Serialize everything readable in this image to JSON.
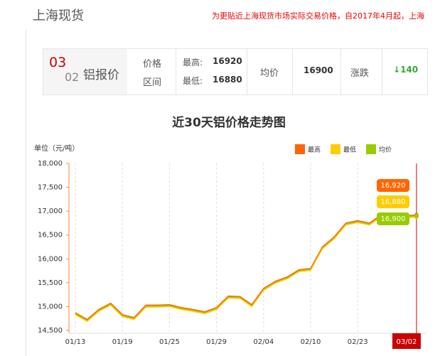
{
  "header": {
    "title": "上海现货",
    "notice": "为更贴近上海现货市场实际交易价格，自2017年4月起，上海"
  },
  "price_box": {
    "month": "03",
    "day": "02",
    "name": "铝报价",
    "range_label_1": "价格",
    "range_label_2": "区间",
    "high_label": "最高:",
    "high": "16920",
    "low_label": "最低:",
    "low": "16880",
    "avg_label": "均价",
    "avg": "16900",
    "change_label": "涨跌",
    "change": "140"
  },
  "chart_data": {
    "type": "line",
    "title": "近30天铝价格走势图",
    "y_label": "单位（元/吨）",
    "categories": [
      "01/13",
      null,
      null,
      null,
      "01/19",
      null,
      null,
      null,
      "01/25",
      null,
      null,
      null,
      "01/29",
      null,
      null,
      null,
      "02/04",
      null,
      null,
      null,
      "02/10",
      null,
      null,
      null,
      "02/23",
      null,
      null,
      null,
      null,
      "03/02"
    ],
    "series": [
      {
        "name": "最高",
        "color": "#ff6600",
        "values": [
          14870,
          14730,
          14940,
          15070,
          14830,
          14770,
          15030,
          15030,
          15040,
          14980,
          14940,
          14890,
          14980,
          15220,
          15210,
          15040,
          15380,
          15530,
          15620,
          15770,
          15800,
          16250,
          16460,
          16750,
          16800,
          16750,
          16920,
          16910,
          16900,
          16920
        ],
        "value_labels": [
          null,
          null,
          null,
          null,
          null,
          null,
          null,
          null,
          null,
          null,
          null,
          null,
          null,
          null,
          null,
          null,
          null,
          null,
          null,
          null,
          null,
          null,
          null,
          null,
          null,
          null,
          null,
          null,
          null,
          "16,920"
        ]
      },
      {
        "name": "最低",
        "color": "#ffcc00",
        "values": [
          14830,
          14690,
          14900,
          15030,
          14790,
          14730,
          14990,
          14990,
          15000,
          14940,
          14900,
          14850,
          14940,
          15180,
          15170,
          15000,
          15340,
          15490,
          15580,
          15730,
          15760,
          16210,
          16420,
          16710,
          16760,
          16710,
          16880,
          16870,
          16860,
          16880
        ],
        "value_labels": [
          null,
          null,
          null,
          null,
          null,
          null,
          null,
          null,
          null,
          null,
          null,
          null,
          null,
          null,
          null,
          null,
          null,
          null,
          null,
          null,
          null,
          null,
          null,
          null,
          null,
          null,
          null,
          null,
          null,
          "16,880"
        ]
      },
      {
        "name": "均价",
        "color": "#99cc00",
        "values": [
          14850,
          14710,
          14920,
          15050,
          14810,
          14750,
          15010,
          15010,
          15020,
          14960,
          14920,
          14870,
          14960,
          15200,
          15190,
          15020,
          15360,
          15510,
          15600,
          15750,
          15780,
          16230,
          16440,
          16730,
          16780,
          16730,
          16900,
          16890,
          16880,
          16900
        ],
        "value_labels": [
          null,
          null,
          null,
          null,
          null,
          null,
          null,
          null,
          null,
          null,
          null,
          null,
          null,
          null,
          null,
          null,
          null,
          null,
          null,
          null,
          null,
          null,
          null,
          null,
          null,
          null,
          null,
          null,
          null,
          "16,900"
        ]
      }
    ],
    "ylim": [
      14500,
      18000
    ],
    "yticks": [
      {
        "value": 14500,
        "label": "14,500"
      },
      {
        "value": 15000,
        "label": "15,000"
      },
      {
        "value": 15500,
        "label": "15,500"
      },
      {
        "value": 16000,
        "label": "16,000"
      },
      {
        "value": 16500,
        "label": "16,500"
      },
      {
        "value": 17000,
        "label": "17,000"
      },
      {
        "value": 17500,
        "label": "17,500"
      },
      {
        "value": 18000,
        "label": "18,000"
      }
    ]
  }
}
